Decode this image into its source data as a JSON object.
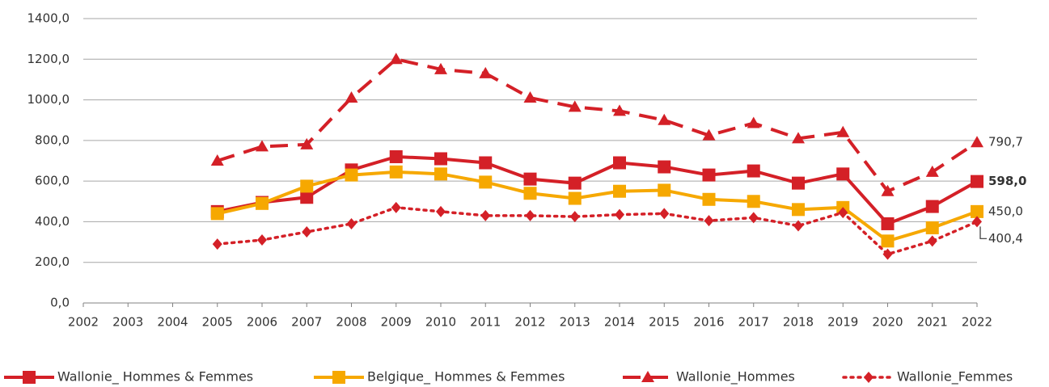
{
  "chart_data": {
    "type": "line",
    "categories": [
      "2002",
      "2003",
      "2004",
      "2005",
      "2006",
      "2007",
      "2008",
      "2009",
      "2010",
      "2011",
      "2012",
      "2013",
      "2014",
      "2015",
      "2016",
      "2017",
      "2018",
      "2019",
      "2020",
      "2021",
      "2022"
    ],
    "ylim": [
      0,
      1400
    ],
    "yticks": [
      {
        "value": 0,
        "label": "0,0"
      },
      {
        "value": 200,
        "label": "200,0"
      },
      {
        "value": 400,
        "label": "400,0"
      },
      {
        "value": 600,
        "label": "600,0"
      },
      {
        "value": 800,
        "label": "800,0"
      },
      {
        "value": 1000,
        "label": "1000,0"
      },
      {
        "value": 1200,
        "label": "1200,0"
      },
      {
        "value": 1400,
        "label": "1400,0"
      }
    ],
    "grid": true,
    "legend": "bottom",
    "series": [
      {
        "name": "Wallonie_ Hommes & Femmes",
        "color": "#d42027",
        "line_style": "solid",
        "marker": "square",
        "values": [
          null,
          null,
          null,
          450,
          495,
          520,
          655,
          720,
          710,
          690,
          610,
          590,
          690,
          670,
          630,
          650,
          590,
          635,
          390,
          475,
          598.0
        ],
        "value_labels": [
          null,
          null,
          null,
          null,
          null,
          null,
          null,
          null,
          null,
          null,
          null,
          null,
          null,
          null,
          null,
          null,
          null,
          null,
          null,
          null,
          "598,0"
        ]
      },
      {
        "name": "Belgique_ Hommes & Femmes",
        "color": "#f6a800",
        "line_style": "solid",
        "marker": "square",
        "values": [
          null,
          null,
          null,
          440,
          490,
          575,
          630,
          645,
          635,
          595,
          540,
          515,
          550,
          555,
          510,
          500,
          460,
          470,
          305,
          370,
          450.0
        ],
        "value_labels": [
          null,
          null,
          null,
          null,
          null,
          null,
          null,
          null,
          null,
          null,
          null,
          null,
          null,
          null,
          null,
          null,
          null,
          null,
          null,
          null,
          "450,0"
        ]
      },
      {
        "name": "Wallonie_Hommes",
        "color": "#d42027",
        "line_style": "dashed",
        "marker": "triangle",
        "values": [
          null,
          null,
          null,
          700,
          770,
          780,
          1010,
          1200,
          1150,
          1130,
          1010,
          965,
          945,
          900,
          825,
          885,
          810,
          840,
          550,
          645,
          790.7
        ],
        "value_labels": [
          null,
          null,
          null,
          null,
          null,
          null,
          null,
          null,
          null,
          null,
          null,
          null,
          null,
          null,
          null,
          null,
          null,
          null,
          null,
          null,
          "790,7"
        ]
      },
      {
        "name": "Wallonie_Femmes",
        "color": "#d42027",
        "line_style": "dotted",
        "marker": "diamond",
        "values": [
          null,
          null,
          null,
          290,
          310,
          350,
          390,
          470,
          450,
          430,
          430,
          425,
          435,
          440,
          405,
          420,
          380,
          445,
          240,
          305,
          400.4
        ],
        "value_labels": [
          null,
          null,
          null,
          null,
          null,
          null,
          null,
          null,
          null,
          null,
          null,
          null,
          null,
          null,
          null,
          null,
          null,
          null,
          null,
          null,
          "400,4"
        ]
      }
    ]
  }
}
